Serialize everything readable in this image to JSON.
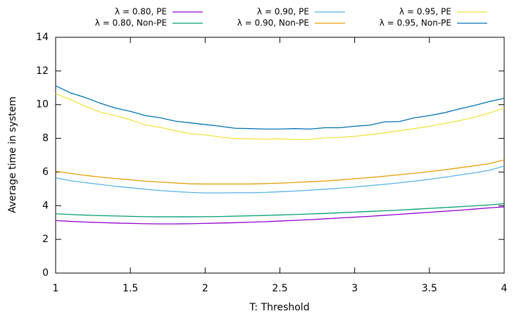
{
  "chart_data": {
    "type": "line",
    "xlabel": "T: Threshold",
    "ylabel": "Average time in system",
    "x": [
      1,
      1.1,
      1.2,
      1.3,
      1.4,
      1.5,
      1.6,
      1.7,
      1.8,
      1.9,
      2,
      2.1,
      2.2,
      2.3,
      2.4,
      2.5,
      2.6,
      2.7,
      2.8,
      2.9,
      3,
      3.1,
      3.2,
      3.3,
      3.4,
      3.5,
      3.6,
      3.7,
      3.8,
      3.9,
      4
    ],
    "series": [
      {
        "name": "λ = 0.80, PE",
        "color": "#9400d3",
        "values": [
          3.12,
          3.07,
          3.03,
          3.0,
          2.97,
          2.95,
          2.93,
          2.92,
          2.92,
          2.93,
          2.95,
          2.97,
          2.99,
          3.02,
          3.05,
          3.09,
          3.13,
          3.17,
          3.22,
          3.27,
          3.32,
          3.37,
          3.43,
          3.49,
          3.55,
          3.61,
          3.67,
          3.73,
          3.8,
          3.87,
          3.93
        ]
      },
      {
        "name": "λ = 0.80, Non-PE",
        "color": "#009e73",
        "values": [
          3.52,
          3.48,
          3.44,
          3.41,
          3.39,
          3.37,
          3.35,
          3.34,
          3.34,
          3.34,
          3.35,
          3.36,
          3.38,
          3.4,
          3.42,
          3.45,
          3.48,
          3.51,
          3.54,
          3.58,
          3.62,
          3.66,
          3.7,
          3.74,
          3.79,
          3.84,
          3.89,
          3.94,
          3.99,
          4.05,
          4.12
        ]
      },
      {
        "name": "λ = 0.90, PE",
        "color": "#56b4e9",
        "values": [
          5.65,
          5.48,
          5.37,
          5.26,
          5.15,
          5.07,
          4.98,
          4.9,
          4.84,
          4.79,
          4.76,
          4.76,
          4.77,
          4.77,
          4.79,
          4.83,
          4.87,
          4.92,
          4.98,
          5.04,
          5.11,
          5.19,
          5.27,
          5.36,
          5.46,
          5.57,
          5.69,
          5.82,
          5.95,
          6.1,
          6.35
        ]
      },
      {
        "name": "λ = 0.90, Non-PE",
        "color": "#e69f00",
        "values": [
          6.05,
          5.92,
          5.8,
          5.7,
          5.61,
          5.54,
          5.46,
          5.4,
          5.35,
          5.3,
          5.29,
          5.29,
          5.29,
          5.29,
          5.31,
          5.34,
          5.38,
          5.42,
          5.47,
          5.53,
          5.6,
          5.67,
          5.75,
          5.84,
          5.93,
          6.03,
          6.13,
          6.25,
          6.37,
          6.5,
          6.72
        ]
      },
      {
        "name": "λ = 0.95, PE",
        "color": "#f0e442",
        "values": [
          10.65,
          10.3,
          9.9,
          9.55,
          9.35,
          9.1,
          8.8,
          8.65,
          8.45,
          8.28,
          8.2,
          8.08,
          7.98,
          7.98,
          7.95,
          7.97,
          7.93,
          7.93,
          8.03,
          8.05,
          8.12,
          8.22,
          8.33,
          8.45,
          8.58,
          8.72,
          8.88,
          9.05,
          9.25,
          9.5,
          9.8
        ]
      },
      {
        "name": "λ = 0.95, Non-PE",
        "color": "#0072b2",
        "values": [
          11.12,
          10.7,
          10.42,
          10.08,
          9.8,
          9.6,
          9.35,
          9.22,
          9.02,
          8.92,
          8.82,
          8.72,
          8.6,
          8.58,
          8.55,
          8.55,
          8.58,
          8.55,
          8.63,
          8.63,
          8.72,
          8.78,
          8.98,
          9.0,
          9.22,
          9.35,
          9.52,
          9.75,
          9.95,
          10.18,
          10.38
        ]
      }
    ],
    "xlim": [
      1,
      4
    ],
    "xticks": [
      1,
      1.5,
      2,
      2.5,
      3,
      3.5,
      4
    ],
    "ylim": [
      0,
      14
    ],
    "yticks": [
      0,
      2,
      4,
      6,
      8,
      10,
      12,
      14
    ],
    "grid": false,
    "legend": "top"
  }
}
